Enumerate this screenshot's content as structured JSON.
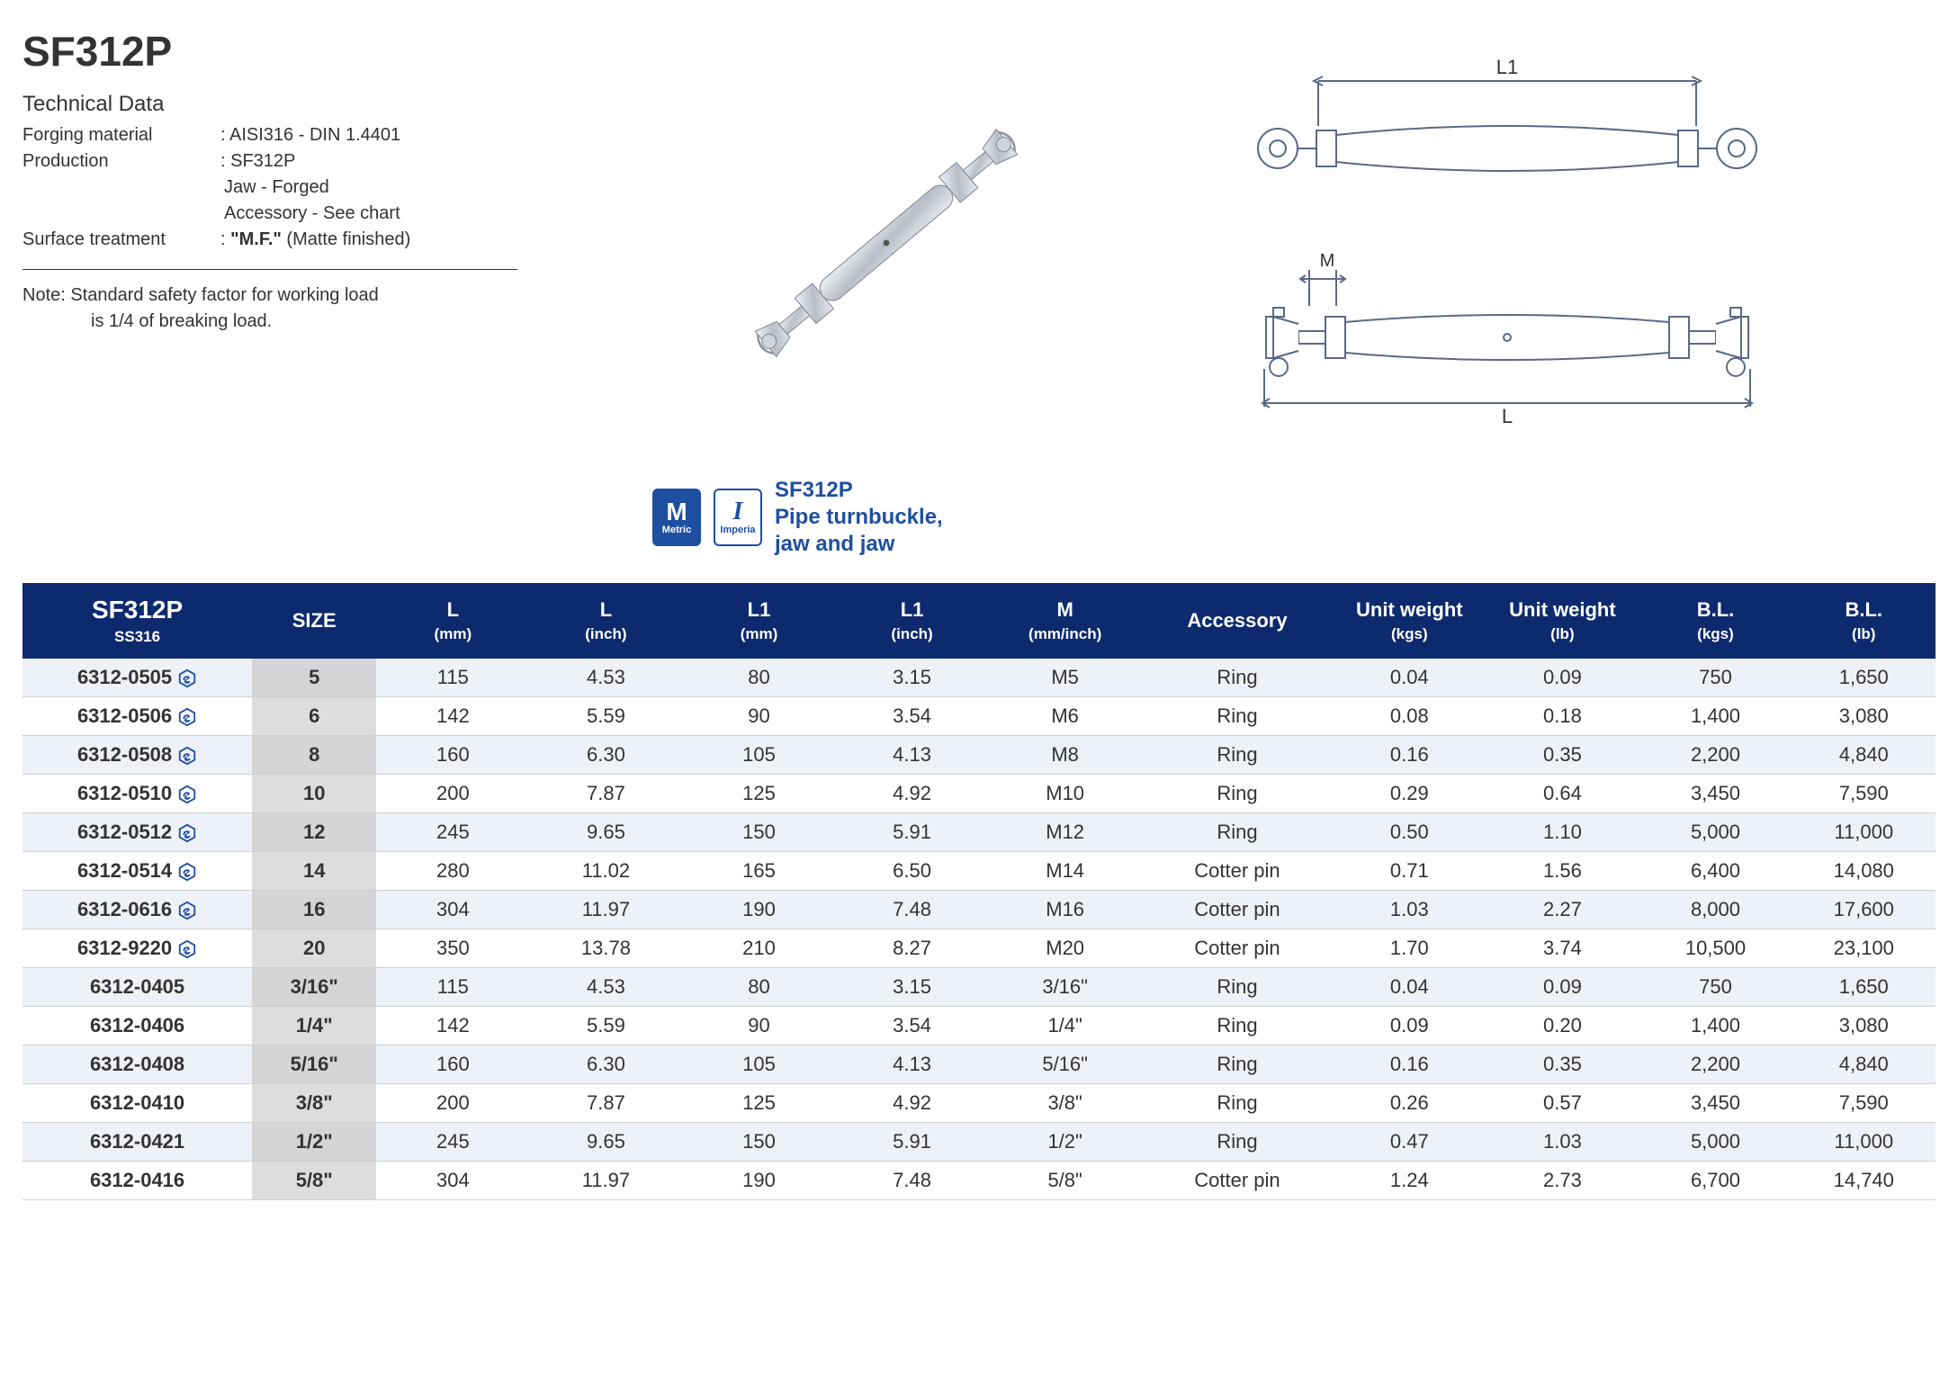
{
  "title": "SF312P",
  "tech_heading": "Technical Data",
  "specs": {
    "forging_label": "Forging material",
    "forging_value": ": AISI316 - DIN 1.4401",
    "production_label": "Production",
    "production_value": ": SF312P",
    "production_line2": "Jaw - Forged",
    "production_line3": "Accessory - See chart",
    "surface_label": "Surface treatment",
    "surface_value_prefix": ": ",
    "surface_value_bold": "\"M.F.\"",
    "surface_value_suffix": " (Matte finished)"
  },
  "note": {
    "prefix": "Note:",
    "line1": "  Standard safety factor for working load",
    "line2": "is 1/4 of breaking load."
  },
  "badges": {
    "metric_big": "M",
    "metric_small": "Metric",
    "imperial_big": "I",
    "imperial_small": "Imperia"
  },
  "product_label": {
    "line1": "SF312P",
    "line2": "Pipe turnbuckle,",
    "line3": "jaw and jaw"
  },
  "diagram_labels": {
    "L1": "L1",
    "L": "L",
    "M": "M"
  },
  "table": {
    "header_bg": "#0d2a6e",
    "header_fg": "#ffffff",
    "row_odd_bg": "#eef1f7",
    "row_even_bg": "#ffffff",
    "size_bg": "#ddddde",
    "columns": [
      {
        "line1": "SF312P",
        "sub": "SS316",
        "class": "model-head"
      },
      {
        "line1": "SIZE"
      },
      {
        "line1": "L",
        "sub": "(mm)"
      },
      {
        "line1": "L",
        "sub": "(inch)"
      },
      {
        "line1": "L1",
        "sub": "(mm)"
      },
      {
        "line1": "L1",
        "sub": "(inch)"
      },
      {
        "line1": "M",
        "sub": "(mm/inch)"
      },
      {
        "line1": "Accessory"
      },
      {
        "line1": "Unit weight",
        "sub": "(kgs)"
      },
      {
        "line1": "Unit weight",
        "sub": "(lb)"
      },
      {
        "line1": "B.L.",
        "sub": "(kgs)"
      },
      {
        "line1": "B.L.",
        "sub": "(lb)"
      }
    ],
    "rows": [
      {
        "model": "6312-0505",
        "stock": true,
        "size": "5",
        "Lmm": "115",
        "Lin": "4.53",
        "L1mm": "80",
        "L1in": "3.15",
        "M": "M5",
        "acc": "Ring",
        "wkg": "0.04",
        "wlb": "0.09",
        "blkg": "750",
        "bllb": "1,650"
      },
      {
        "model": "6312-0506",
        "stock": true,
        "size": "6",
        "Lmm": "142",
        "Lin": "5.59",
        "L1mm": "90",
        "L1in": "3.54",
        "M": "M6",
        "acc": "Ring",
        "wkg": "0.08",
        "wlb": "0.18",
        "blkg": "1,400",
        "bllb": "3,080"
      },
      {
        "model": "6312-0508",
        "stock": true,
        "size": "8",
        "Lmm": "160",
        "Lin": "6.30",
        "L1mm": "105",
        "L1in": "4.13",
        "M": "M8",
        "acc": "Ring",
        "wkg": "0.16",
        "wlb": "0.35",
        "blkg": "2,200",
        "bllb": "4,840"
      },
      {
        "model": "6312-0510",
        "stock": true,
        "size": "10",
        "Lmm": "200",
        "Lin": "7.87",
        "L1mm": "125",
        "L1in": "4.92",
        "M": "M10",
        "acc": "Ring",
        "wkg": "0.29",
        "wlb": "0.64",
        "blkg": "3,450",
        "bllb": "7,590"
      },
      {
        "model": "6312-0512",
        "stock": true,
        "size": "12",
        "Lmm": "245",
        "Lin": "9.65",
        "L1mm": "150",
        "L1in": "5.91",
        "M": "M12",
        "acc": "Ring",
        "wkg": "0.50",
        "wlb": "1.10",
        "blkg": "5,000",
        "bllb": "11,000"
      },
      {
        "model": "6312-0514",
        "stock": true,
        "size": "14",
        "Lmm": "280",
        "Lin": "11.02",
        "L1mm": "165",
        "L1in": "6.50",
        "M": "M14",
        "acc": "Cotter pin",
        "wkg": "0.71",
        "wlb": "1.56",
        "blkg": "6,400",
        "bllb": "14,080"
      },
      {
        "model": "6312-0616",
        "stock": true,
        "size": "16",
        "Lmm": "304",
        "Lin": "11.97",
        "L1mm": "190",
        "L1in": "7.48",
        "M": "M16",
        "acc": "Cotter pin",
        "wkg": "1.03",
        "wlb": "2.27",
        "blkg": "8,000",
        "bllb": "17,600"
      },
      {
        "model": "6312-9220",
        "stock": true,
        "size": "20",
        "Lmm": "350",
        "Lin": "13.78",
        "L1mm": "210",
        "L1in": "8.27",
        "M": "M20",
        "acc": "Cotter pin",
        "wkg": "1.70",
        "wlb": "3.74",
        "blkg": "10,500",
        "bllb": "23,100"
      },
      {
        "model": "6312-0405",
        "stock": false,
        "size": "3/16\"",
        "Lmm": "115",
        "Lin": "4.53",
        "L1mm": "80",
        "L1in": "3.15",
        "M": "3/16\"",
        "acc": "Ring",
        "wkg": "0.04",
        "wlb": "0.09",
        "blkg": "750",
        "bllb": "1,650"
      },
      {
        "model": "6312-0406",
        "stock": false,
        "size": "1/4\"",
        "Lmm": "142",
        "Lin": "5.59",
        "L1mm": "90",
        "L1in": "3.54",
        "M": "1/4\"",
        "acc": "Ring",
        "wkg": "0.09",
        "wlb": "0.20",
        "blkg": "1,400",
        "bllb": "3,080"
      },
      {
        "model": "6312-0408",
        "stock": false,
        "size": "5/16\"",
        "Lmm": "160",
        "Lin": "6.30",
        "L1mm": "105",
        "L1in": "4.13",
        "M": "5/16\"",
        "acc": "Ring",
        "wkg": "0.16",
        "wlb": "0.35",
        "blkg": "2,200",
        "bllb": "4,840"
      },
      {
        "model": "6312-0410",
        "stock": false,
        "size": "3/8\"",
        "Lmm": "200",
        "Lin": "7.87",
        "L1mm": "125",
        "L1in": "4.92",
        "M": "3/8\"",
        "acc": "Ring",
        "wkg": "0.26",
        "wlb": "0.57",
        "blkg": "3,450",
        "bllb": "7,590"
      },
      {
        "model": "6312-0421",
        "stock": false,
        "size": "1/2\"",
        "Lmm": "245",
        "Lin": "9.65",
        "L1mm": "150",
        "L1in": "5.91",
        "M": "1/2\"",
        "acc": "Ring",
        "wkg": "0.47",
        "wlb": "1.03",
        "blkg": "5,000",
        "bllb": "11,000"
      },
      {
        "model": "6312-0416",
        "stock": false,
        "size": "5/8\"",
        "Lmm": "304",
        "Lin": "11.97",
        "L1mm": "190",
        "L1in": "7.48",
        "M": "5/8\"",
        "acc": "Cotter pin",
        "wkg": "1.24",
        "wlb": "2.73",
        "blkg": "6,700",
        "bllb": "14,740"
      }
    ]
  },
  "colors": {
    "brand_blue": "#1e4fa0",
    "header_navy": "#0d2a6e",
    "text": "#333333",
    "diagram_stroke": "#5a6a85"
  }
}
